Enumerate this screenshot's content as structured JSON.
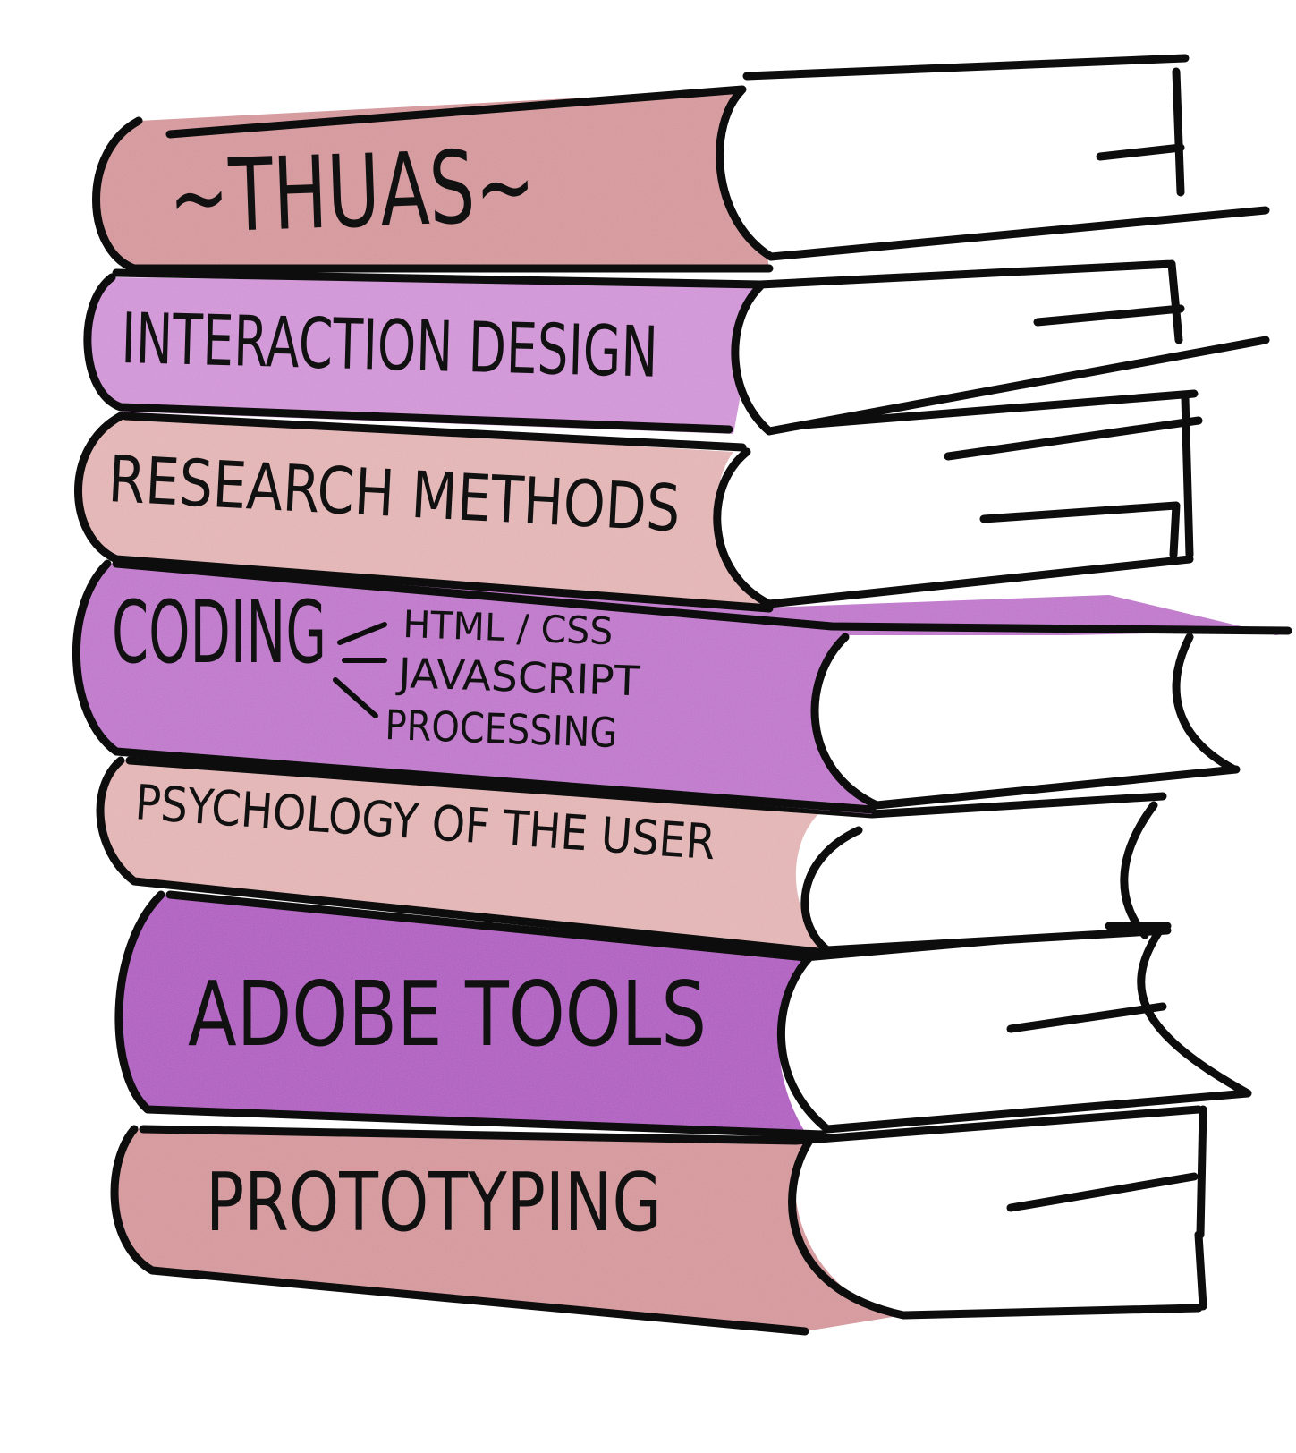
{
  "colors": {
    "pink": "#d99a9e",
    "pink_light": "#e8b8b8",
    "purple": "#c377cf",
    "purple_dark": "#b35bc4",
    "purple_light": "#d596db",
    "ink": "#0d0d0d"
  },
  "books": [
    {
      "title": "~THUAS~"
    },
    {
      "title": "INTERACTION DESIGN"
    },
    {
      "title": "RESEARCH METHODS"
    },
    {
      "title": "CODING",
      "topics": [
        "HTML / CSS",
        "JAVASCRIPT",
        "PROCESSING"
      ]
    },
    {
      "title": "PSYCHOLOGY OF THE USER"
    },
    {
      "title": "ADOBE TOOLS"
    },
    {
      "title": "PROTOTYPING"
    }
  ]
}
